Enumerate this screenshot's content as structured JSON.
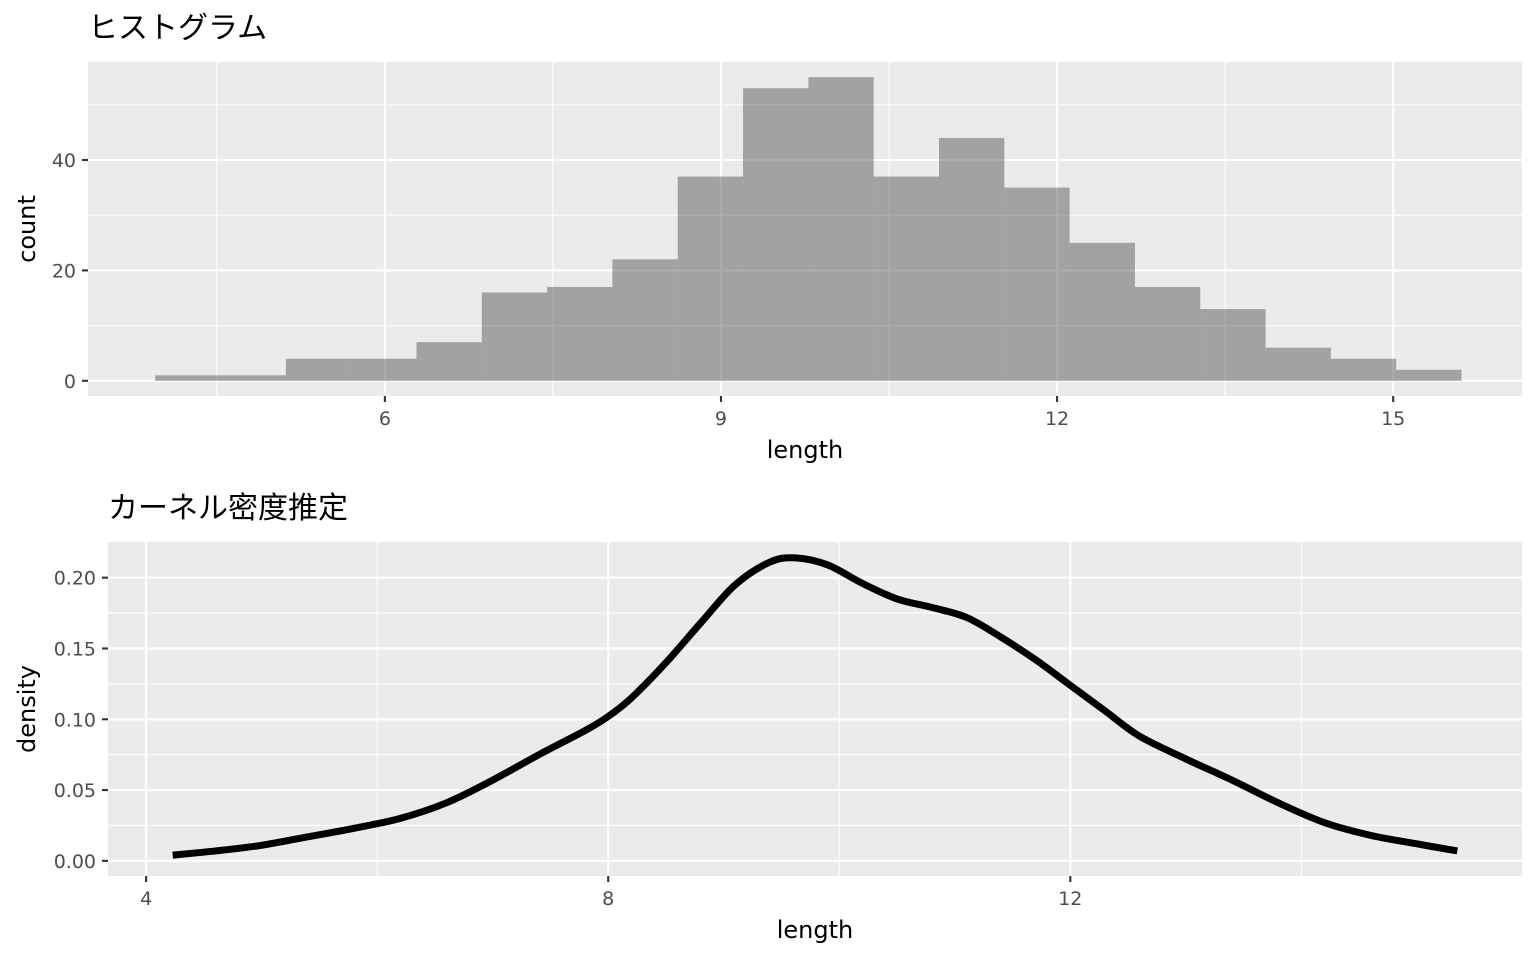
{
  "chart_data": [
    {
      "type": "bar",
      "title": "ヒストグラム",
      "xlabel": "length",
      "ylabel": "count",
      "xlim": [
        3.35,
        16.15
      ],
      "ylim": [
        -2.75,
        57.75
      ],
      "x_breaks": [
        6,
        9,
        12,
        15
      ],
      "x_minor_breaks": [
        4.5,
        7.5,
        10.5,
        13.5
      ],
      "y_breaks": [
        0,
        20,
        40
      ],
      "y_minor_breaks": [
        10,
        30,
        50
      ],
      "bins": [
        {
          "x0": 3.95,
          "x1": 4.533,
          "count": 1
        },
        {
          "x0": 4.533,
          "x1": 5.116,
          "count": 1
        },
        {
          "x0": 5.116,
          "x1": 5.699,
          "count": 4
        },
        {
          "x0": 5.699,
          "x1": 6.282,
          "count": 4
        },
        {
          "x0": 6.282,
          "x1": 6.865,
          "count": 7
        },
        {
          "x0": 6.865,
          "x1": 7.448,
          "count": 16
        },
        {
          "x0": 7.448,
          "x1": 8.031,
          "count": 17
        },
        {
          "x0": 8.031,
          "x1": 8.614,
          "count": 22
        },
        {
          "x0": 8.614,
          "x1": 9.197,
          "count": 37
        },
        {
          "x0": 9.197,
          "x1": 9.78,
          "count": 53
        },
        {
          "x0": 9.78,
          "x1": 10.363,
          "count": 55
        },
        {
          "x0": 10.363,
          "x1": 10.946,
          "count": 37
        },
        {
          "x0": 10.946,
          "x1": 11.529,
          "count": 44
        },
        {
          "x0": 11.529,
          "x1": 12.112,
          "count": 35
        },
        {
          "x0": 12.112,
          "x1": 12.695,
          "count": 25
        },
        {
          "x0": 12.695,
          "x1": 13.278,
          "count": 17
        },
        {
          "x0": 13.278,
          "x1": 13.861,
          "count": 13
        },
        {
          "x0": 13.861,
          "x1": 14.444,
          "count": 6
        },
        {
          "x0": 14.444,
          "x1": 15.027,
          "count": 4
        },
        {
          "x0": 15.027,
          "x1": 15.61,
          "count": 2
        }
      ],
      "grid": true,
      "legend": "none"
    },
    {
      "type": "line",
      "title": "カーネル密度推定",
      "xlabel": "length",
      "ylabel": "density",
      "xlim": [
        3.67,
        15.91
      ],
      "ylim": [
        -0.0107,
        0.2252
      ],
      "x_breaks": [
        4,
        8,
        12
      ],
      "x_minor_breaks": [
        6,
        10,
        14
      ],
      "y_breaks": [
        0.0,
        0.05,
        0.1,
        0.15,
        0.2
      ],
      "y_tick_labels": [
        "0.00",
        "0.05",
        "0.10",
        "0.15",
        "0.20"
      ],
      "y_minor_breaks": [
        0.025,
        0.075,
        0.125,
        0.175
      ],
      "series": [
        {
          "x": [
            4.23,
            4.6,
            5.0,
            5.4,
            5.8,
            6.2,
            6.6,
            7.0,
            7.4,
            7.8,
            8.0,
            8.2,
            8.5,
            8.8,
            9.1,
            9.4,
            9.62,
            9.9,
            10.2,
            10.5,
            10.8,
            11.1,
            11.4,
            11.7,
            12.0,
            12.3,
            12.6,
            13.0,
            13.4,
            13.8,
            14.2,
            14.6,
            15.0,
            15.35
          ],
          "y": [
            0.004,
            0.007,
            0.011,
            0.017,
            0.023,
            0.03,
            0.041,
            0.057,
            0.075,
            0.092,
            0.102,
            0.115,
            0.14,
            0.168,
            0.195,
            0.211,
            0.214,
            0.209,
            0.196,
            0.185,
            0.179,
            0.172,
            0.158,
            0.142,
            0.124,
            0.106,
            0.088,
            0.072,
            0.057,
            0.041,
            0.027,
            0.018,
            0.012,
            0.007
          ]
        }
      ],
      "grid": true,
      "legend": "none"
    }
  ]
}
